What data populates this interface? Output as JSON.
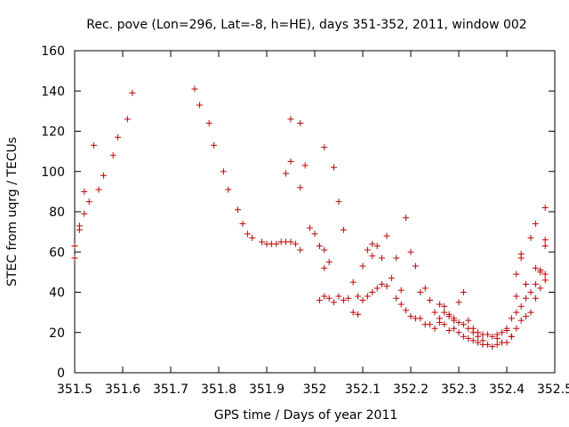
{
  "chart_data": {
    "type": "scatter",
    "title": "Rec. pove (Lon=296, Lat=-8, h=HE), days 351-352, 2011, window 002",
    "xlabel": "GPS time / Days of year 2011",
    "ylabel": "STEC from uqrg / TECUs",
    "xlim": [
      351.5,
      352.5
    ],
    "ylim": [
      0,
      160
    ],
    "x_ticks": [
      "351.5",
      "351.6",
      "351.7",
      "351.8",
      "351.9",
      "352",
      "352.1",
      "352.2",
      "352.3",
      "352.4",
      "352.5"
    ],
    "y_ticks": [
      "0",
      "20",
      "40",
      "60",
      "80",
      "100",
      "120",
      "140",
      "160"
    ],
    "grid": false,
    "legend": "none",
    "marker": "plus",
    "color": "#cc0000",
    "series": [
      {
        "points": [
          [
            351.5,
            63
          ],
          [
            351.5,
            57
          ],
          [
            351.51,
            73
          ],
          [
            351.51,
            71
          ],
          [
            351.52,
            90
          ],
          [
            351.52,
            79
          ],
          [
            351.53,
            85
          ],
          [
            351.54,
            113
          ],
          [
            351.55,
            91
          ],
          [
            351.56,
            98
          ],
          [
            351.58,
            108
          ],
          [
            351.59,
            117
          ],
          [
            351.61,
            126
          ],
          [
            351.62,
            139
          ],
          [
            351.75,
            141
          ],
          [
            351.76,
            133
          ],
          [
            351.78,
            124
          ],
          [
            351.79,
            113
          ],
          [
            351.81,
            100
          ],
          [
            351.82,
            91
          ],
          [
            351.84,
            81
          ],
          [
            351.85,
            74
          ],
          [
            351.86,
            69
          ],
          [
            351.87,
            67
          ],
          [
            351.89,
            65
          ],
          [
            351.9,
            64
          ],
          [
            351.91,
            64
          ],
          [
            351.92,
            64
          ],
          [
            351.93,
            65
          ],
          [
            351.94,
            65
          ],
          [
            351.95,
            65
          ],
          [
            351.96,
            64
          ],
          [
            351.97,
            61
          ],
          [
            351.94,
            99
          ],
          [
            351.95,
            126
          ],
          [
            351.95,
            105
          ],
          [
            351.97,
            124
          ],
          [
            351.97,
            92
          ],
          [
            351.98,
            103
          ],
          [
            351.99,
            72
          ],
          [
            352.0,
            69
          ],
          [
            352.01,
            63
          ],
          [
            352.02,
            61
          ],
          [
            352.02,
            112
          ],
          [
            352.02,
            52
          ],
          [
            352.03,
            55
          ],
          [
            352.04,
            102
          ],
          [
            352.05,
            85
          ],
          [
            352.06,
            71
          ],
          [
            352.08,
            45
          ],
          [
            352.09,
            38
          ],
          [
            352.09,
            29
          ],
          [
            352.1,
            53
          ],
          [
            352.11,
            61
          ],
          [
            352.12,
            64
          ],
          [
            352.12,
            58
          ],
          [
            352.13,
            63
          ],
          [
            352.14,
            57
          ],
          [
            352.15,
            68
          ],
          [
            352.17,
            57
          ],
          [
            352.18,
            41
          ],
          [
            352.19,
            77
          ],
          [
            352.2,
            60
          ],
          [
            352.21,
            53
          ],
          [
            352.22,
            40
          ],
          [
            352.23,
            42
          ],
          [
            352.24,
            36
          ],
          [
            352.01,
            36
          ],
          [
            352.02,
            38
          ],
          [
            352.03,
            37
          ],
          [
            352.04,
            35
          ],
          [
            352.05,
            38
          ],
          [
            352.06,
            36
          ],
          [
            352.07,
            37
          ],
          [
            352.08,
            30
          ],
          [
            352.1,
            36
          ],
          [
            352.11,
            38
          ],
          [
            352.12,
            40
          ],
          [
            352.13,
            42
          ],
          [
            352.14,
            44
          ],
          [
            352.15,
            43
          ],
          [
            352.16,
            47
          ],
          [
            352.17,
            37
          ],
          [
            352.18,
            34
          ],
          [
            352.19,
            31
          ],
          [
            352.2,
            28
          ],
          [
            352.21,
            27
          ],
          [
            352.22,
            27
          ],
          [
            352.23,
            24
          ],
          [
            352.24,
            24
          ],
          [
            352.25,
            22
          ],
          [
            352.25,
            30
          ],
          [
            352.26,
            27
          ],
          [
            352.26,
            25
          ],
          [
            352.27,
            24
          ],
          [
            352.27,
            30
          ],
          [
            352.28,
            28
          ],
          [
            352.28,
            21
          ],
          [
            352.29,
            27
          ],
          [
            352.29,
            22
          ],
          [
            352.3,
            25
          ],
          [
            352.3,
            20
          ],
          [
            352.31,
            24
          ],
          [
            352.31,
            18
          ],
          [
            352.32,
            22
          ],
          [
            352.32,
            17
          ],
          [
            352.33,
            20
          ],
          [
            352.33,
            16
          ],
          [
            352.34,
            18
          ],
          [
            352.34,
            15
          ],
          [
            352.35,
            16
          ],
          [
            352.35,
            14
          ],
          [
            352.36,
            14
          ],
          [
            352.37,
            13
          ],
          [
            352.38,
            14
          ],
          [
            352.38,
            19
          ],
          [
            352.39,
            15
          ],
          [
            352.4,
            22
          ],
          [
            352.4,
            15
          ],
          [
            352.41,
            18
          ],
          [
            352.41,
            27
          ],
          [
            352.42,
            30
          ],
          [
            352.42,
            22
          ],
          [
            352.43,
            26
          ],
          [
            352.43,
            33
          ],
          [
            352.44,
            28
          ],
          [
            352.44,
            37
          ],
          [
            352.45,
            30
          ],
          [
            352.45,
            40
          ],
          [
            352.46,
            37
          ],
          [
            352.46,
            44
          ],
          [
            352.47,
            42
          ],
          [
            352.47,
            51
          ],
          [
            352.48,
            46
          ],
          [
            352.48,
            49
          ],
          [
            352.48,
            63
          ],
          [
            352.26,
            34
          ],
          [
            352.27,
            33
          ],
          [
            352.28,
            29
          ],
          [
            352.29,
            26
          ],
          [
            352.3,
            35
          ],
          [
            352.31,
            40
          ],
          [
            352.32,
            26
          ],
          [
            352.33,
            22
          ],
          [
            352.34,
            20
          ],
          [
            352.35,
            19
          ],
          [
            352.36,
            19
          ],
          [
            352.37,
            18
          ],
          [
            352.38,
            17
          ],
          [
            352.39,
            20
          ],
          [
            352.4,
            21
          ],
          [
            352.41,
            18
          ],
          [
            352.42,
            38
          ],
          [
            352.42,
            49
          ],
          [
            352.43,
            57
          ],
          [
            352.43,
            59
          ],
          [
            352.44,
            44
          ],
          [
            352.45,
            67
          ],
          [
            352.46,
            52
          ],
          [
            352.46,
            74
          ],
          [
            352.47,
            50
          ],
          [
            352.48,
            82
          ],
          [
            352.48,
            66
          ]
        ]
      }
    ]
  }
}
